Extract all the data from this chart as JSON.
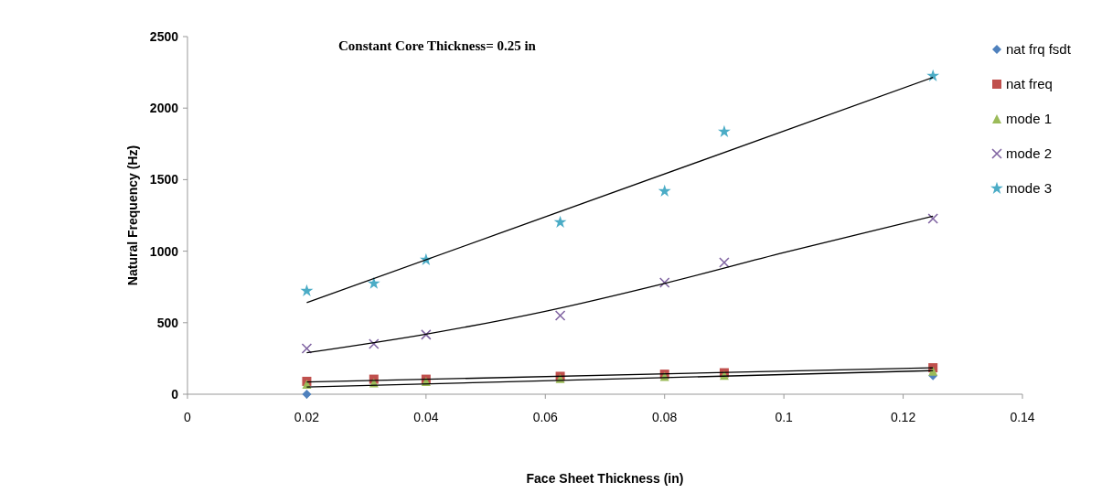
{
  "chart_data": {
    "type": "scatter",
    "title": "Constant   Core Thickness= 0.25 in",
    "xlabel": "Face Sheet Thickness (in)",
    "ylabel": "Natural Frequency (Hz)",
    "x": [
      0.02,
      0.03125,
      0.04,
      0.0625,
      0.08,
      0.09,
      0.125
    ],
    "series": [
      {
        "name": "nat frq fsdt",
        "color": "#4f81bd",
        "marker": "diamond",
        "values": [
          0,
          null,
          null,
          null,
          null,
          null,
          130
        ]
      },
      {
        "name": "nat freq",
        "color": "#c0504d",
        "marker": "square",
        "values": [
          90,
          105,
          105,
          125,
          140,
          150,
          185
        ]
      },
      {
        "name": "mode 1",
        "color": "#9bbb59",
        "marker": "triangle",
        "values": [
          70,
          80,
          90,
          110,
          125,
          132,
          162
        ]
      },
      {
        "name": "mode 2",
        "color": "#8064a2",
        "marker": "cross",
        "values": [
          320,
          352,
          416,
          550,
          780,
          921,
          1228
        ]
      },
      {
        "name": "mode 3",
        "color": "#4bacc6",
        "marker": "star",
        "values": [
          722,
          774,
          940,
          1202,
          1419,
          1835,
          2225
        ]
      },
      {
        "type": "line",
        "color": "#000000",
        "marker": "none",
        "x": [
          0.02,
          0.125
        ],
        "values": [
          640,
          2215
        ]
      },
      {
        "type": "line",
        "color": "#000000",
        "marker": "none",
        "x": [
          0.02,
          0.04,
          0.06,
          0.08,
          0.1,
          0.125
        ],
        "values": [
          290,
          420,
          580,
          775,
          990,
          1245
        ]
      },
      {
        "type": "line",
        "color": "#000000",
        "marker": "none",
        "x": [
          0.02,
          0.125
        ],
        "values": [
          85,
          185
        ]
      },
      {
        "type": "line",
        "color": "#000000",
        "marker": "none",
        "x": [
          0.02,
          0.125
        ],
        "values": [
          50,
          165
        ]
      }
    ],
    "xlim": [
      0,
      0.14
    ],
    "xticks": [
      0,
      0.02,
      0.04,
      0.06,
      0.08,
      0.1,
      0.12,
      0.14
    ],
    "ylim": [
      0,
      2500
    ],
    "yticks": [
      0,
      500,
      1000,
      1500,
      2000,
      2500
    ],
    "grid": false,
    "legend": "right"
  }
}
